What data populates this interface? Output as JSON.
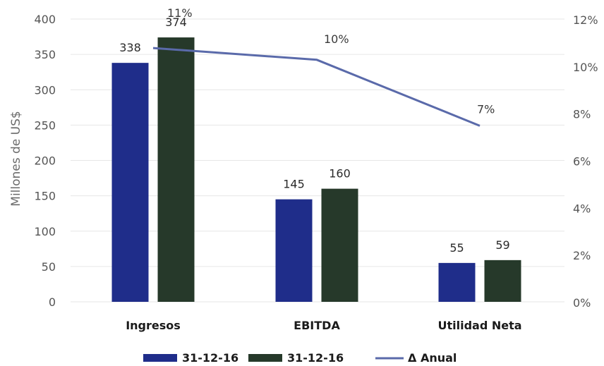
{
  "chart_data": {
    "type": "bar",
    "categories": [
      "Ingresos",
      "EBITDA",
      "Utilidad Neta"
    ],
    "series": [
      {
        "name": "31-12-16",
        "type": "bar",
        "axis": "left",
        "color": "#1f2d8a",
        "values": [
          338,
          145,
          55
        ],
        "labels": [
          "338",
          "145",
          "55"
        ]
      },
      {
        "name": "31-12-16",
        "type": "bar",
        "axis": "left",
        "color": "#26392a",
        "values": [
          374,
          160,
          59
        ],
        "labels": [
          "374",
          "160",
          "59"
        ]
      },
      {
        "name": "Δ Anual",
        "type": "line",
        "axis": "right",
        "color": "#5a6aaa",
        "values": [
          0.108,
          0.103,
          0.075
        ],
        "labels": [
          "11%",
          "10%",
          "7%"
        ]
      }
    ],
    "ylabel": "Millones de US$",
    "ylim": [
      0,
      400
    ],
    "y_ticks": [
      "0",
      "50",
      "100",
      "150",
      "200",
      "250",
      "300",
      "350",
      "400"
    ],
    "y2lim": [
      0,
      0.12
    ],
    "y2_ticks": [
      "0%",
      "2%",
      "4%",
      "6%",
      "8%",
      "10%",
      "12%"
    ],
    "grid": true,
    "legend_position": "bottom"
  },
  "colors": {
    "axis_text": "#555555",
    "category_text": "#1a1a1a",
    "grid": "#e6e6e6"
  }
}
